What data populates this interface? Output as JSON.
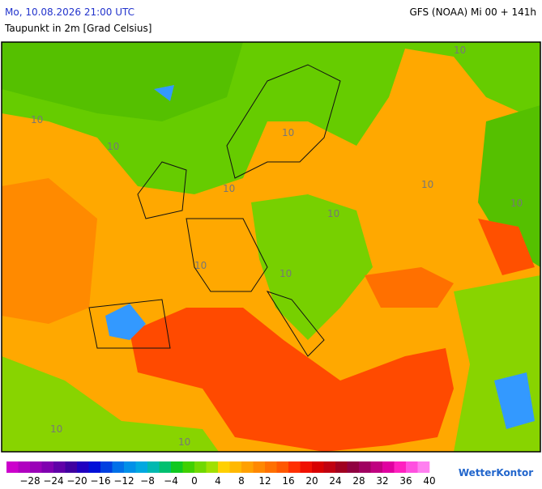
{
  "header": {
    "datetime": "Mo, 10.08.2026 21:00 UTC",
    "variable": "Taupunkt in 2m [Grad Celsius]",
    "model": "GFS (NOAA) Mi 00 + 141h"
  },
  "map": {
    "contour_labels": [
      "10",
      "10",
      "10",
      "10",
      "10",
      "10",
      "10",
      "10",
      "10",
      "10",
      "10",
      "10"
    ]
  },
  "legend": {
    "colors": [
      "#cc00cc",
      "#b000c0",
      "#9a00b8",
      "#8000b0",
      "#6000a8",
      "#4000a0",
      "#2000c0",
      "#0010d8",
      "#0040e0",
      "#0070e8",
      "#0090e8",
      "#00a8e0",
      "#00b8b0",
      "#00c070",
      "#10c820",
      "#40d000",
      "#70d800",
      "#a0e000",
      "#ffd000",
      "#ffb800",
      "#ffa000",
      "#ff8800",
      "#ff7000",
      "#ff5800",
      "#ff3000",
      "#f01000",
      "#d80000",
      "#c00010",
      "#a00020",
      "#900040",
      "#a00060",
      "#c00080",
      "#e000a0",
      "#ff20c0",
      "#ff50e0",
      "#ff80f0"
    ],
    "labels": [
      "−28",
      "−24",
      "−20",
      "−16",
      "−12",
      "−8",
      "−4",
      "0",
      "4",
      "8",
      "12",
      "16",
      "20",
      "24",
      "28",
      "32",
      "36",
      "40"
    ]
  },
  "brand": "WetterKontor"
}
